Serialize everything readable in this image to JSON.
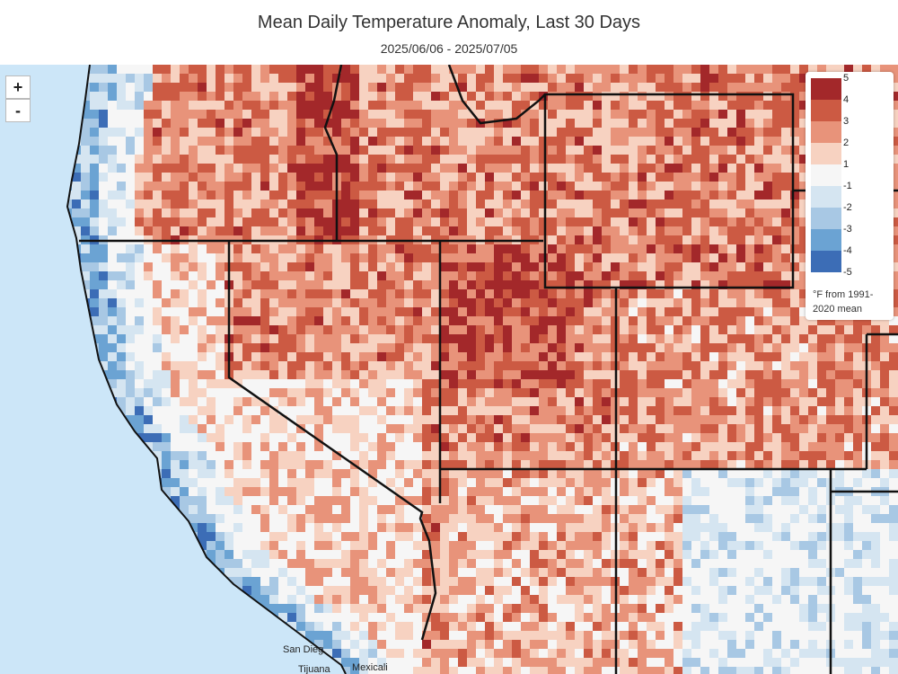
{
  "header": {
    "title": "Mean Daily Temperature Anomaly, Last 30 Days",
    "subtitle": "2025/06/06 - 2025/07/05"
  },
  "zoom": {
    "in": "+",
    "out": "-"
  },
  "legend": {
    "colors": [
      "#a3282a",
      "#cc5a43",
      "#e8937a",
      "#f7d2c1",
      "#f6f6f6",
      "#d5e5f1",
      "#a8c8e4",
      "#6ba3d3",
      "#3c6db6"
    ],
    "labels": [
      5,
      4,
      3,
      2,
      1,
      -1,
      -2,
      -3,
      -4,
      -5
    ],
    "unit": "°F from 1991-2020 mean"
  },
  "places": [
    "San Dieg",
    "Tijuana",
    "Mexicali"
  ]
}
